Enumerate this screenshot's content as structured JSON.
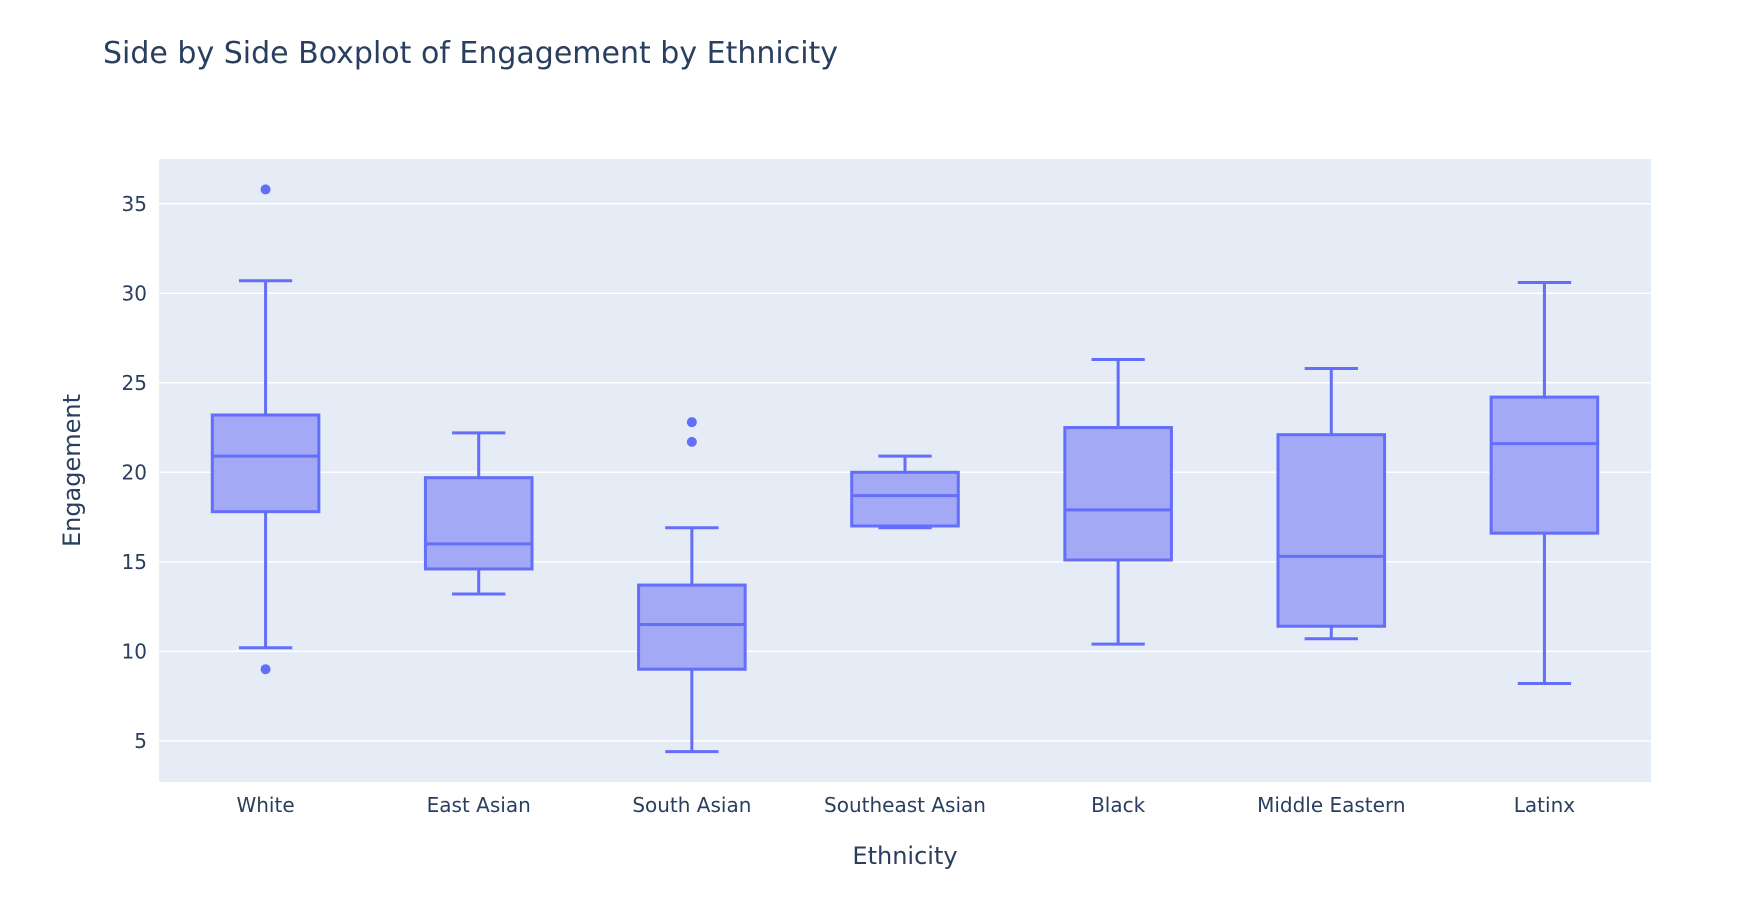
{
  "chart_data": {
    "type": "box",
    "title": "Side by Side Boxplot of Engagement by Ethnicity",
    "xlabel": "Ethnicity",
    "ylabel": "Engagement",
    "ylim": [
      2.7,
      37.5
    ],
    "yticks": [
      5,
      10,
      15,
      20,
      25,
      30,
      35
    ],
    "grid": true,
    "colors": {
      "background": "#e5ecf6",
      "grid": "#ffffff",
      "box_line": "#636efa",
      "box_fill": "#a3a9f4",
      "text": "#2a3f5f"
    },
    "categories": [
      "White",
      "East Asian",
      "South Asian",
      "Southeast Asian",
      "Black",
      "Middle Eastern",
      "Latinx"
    ],
    "boxes": [
      {
        "category": "White",
        "lower_whisker": 10.2,
        "q1": 17.8,
        "median": 20.9,
        "q3": 23.2,
        "upper_whisker": 30.7,
        "outliers": [
          35.8,
          9.0
        ]
      },
      {
        "category": "East Asian",
        "lower_whisker": 13.2,
        "q1": 14.6,
        "median": 16.0,
        "q3": 19.7,
        "upper_whisker": 22.2,
        "outliers": []
      },
      {
        "category": "South Asian",
        "lower_whisker": 4.4,
        "q1": 9.0,
        "median": 11.5,
        "q3": 13.7,
        "upper_whisker": 16.9,
        "outliers": [
          22.8,
          21.7
        ]
      },
      {
        "category": "Southeast Asian",
        "lower_whisker": 16.9,
        "q1": 17.0,
        "median": 18.7,
        "q3": 20.0,
        "upper_whisker": 20.9,
        "outliers": []
      },
      {
        "category": "Black",
        "lower_whisker": 10.4,
        "q1": 15.1,
        "median": 17.9,
        "q3": 22.5,
        "upper_whisker": 26.3,
        "outliers": []
      },
      {
        "category": "Middle Eastern",
        "lower_whisker": 10.7,
        "q1": 11.4,
        "median": 15.3,
        "q3": 22.1,
        "upper_whisker": 25.8,
        "outliers": []
      },
      {
        "category": "Latinx",
        "lower_whisker": 8.2,
        "q1": 16.6,
        "median": 21.6,
        "q3": 24.2,
        "upper_whisker": 30.6,
        "outliers": []
      }
    ]
  }
}
